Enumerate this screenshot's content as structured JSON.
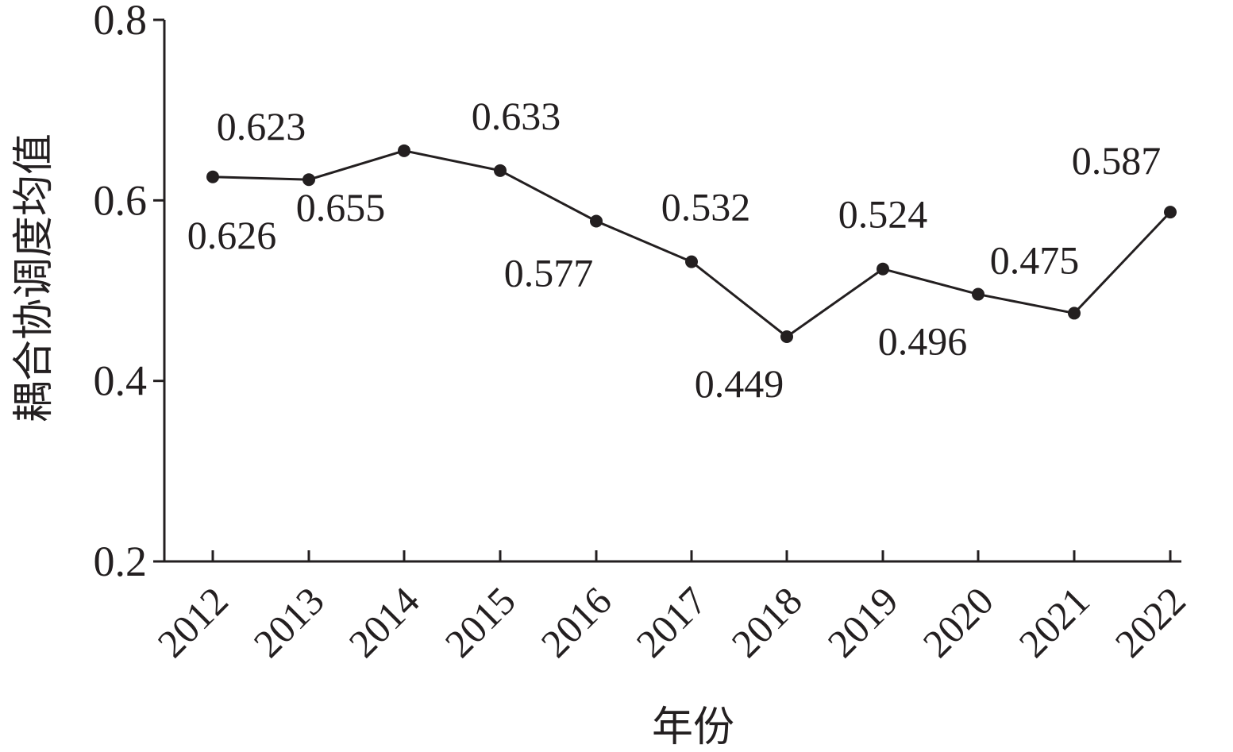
{
  "chart_data": {
    "type": "line",
    "title": "",
    "xlabel": "年份",
    "ylabel": "耦合协调度均值",
    "categories": [
      "2012",
      "2013",
      "2014",
      "2015",
      "2016",
      "2017",
      "2018",
      "2019",
      "2020",
      "2021",
      "2022"
    ],
    "series": [
      {
        "values": [
          0.626,
          0.623,
          0.655,
          0.633,
          0.577,
          0.532,
          0.449,
          0.524,
          0.496,
          0.475,
          0.587
        ]
      }
    ],
    "value_labels": [
      "0.626",
      "0.623",
      "0.655",
      "0.633",
      "0.577",
      "0.532",
      "0.449",
      "0.524",
      "0.496",
      "0.475",
      "0.587"
    ],
    "ylim": [
      0.2,
      0.8
    ],
    "yticks": [
      "0.2",
      "0.4",
      "0.6",
      "0.8"
    ],
    "grid": false,
    "legend": "none",
    "colors": {
      "line": "#231f20",
      "marker": "#231f20",
      "text": "#231f20"
    }
  }
}
